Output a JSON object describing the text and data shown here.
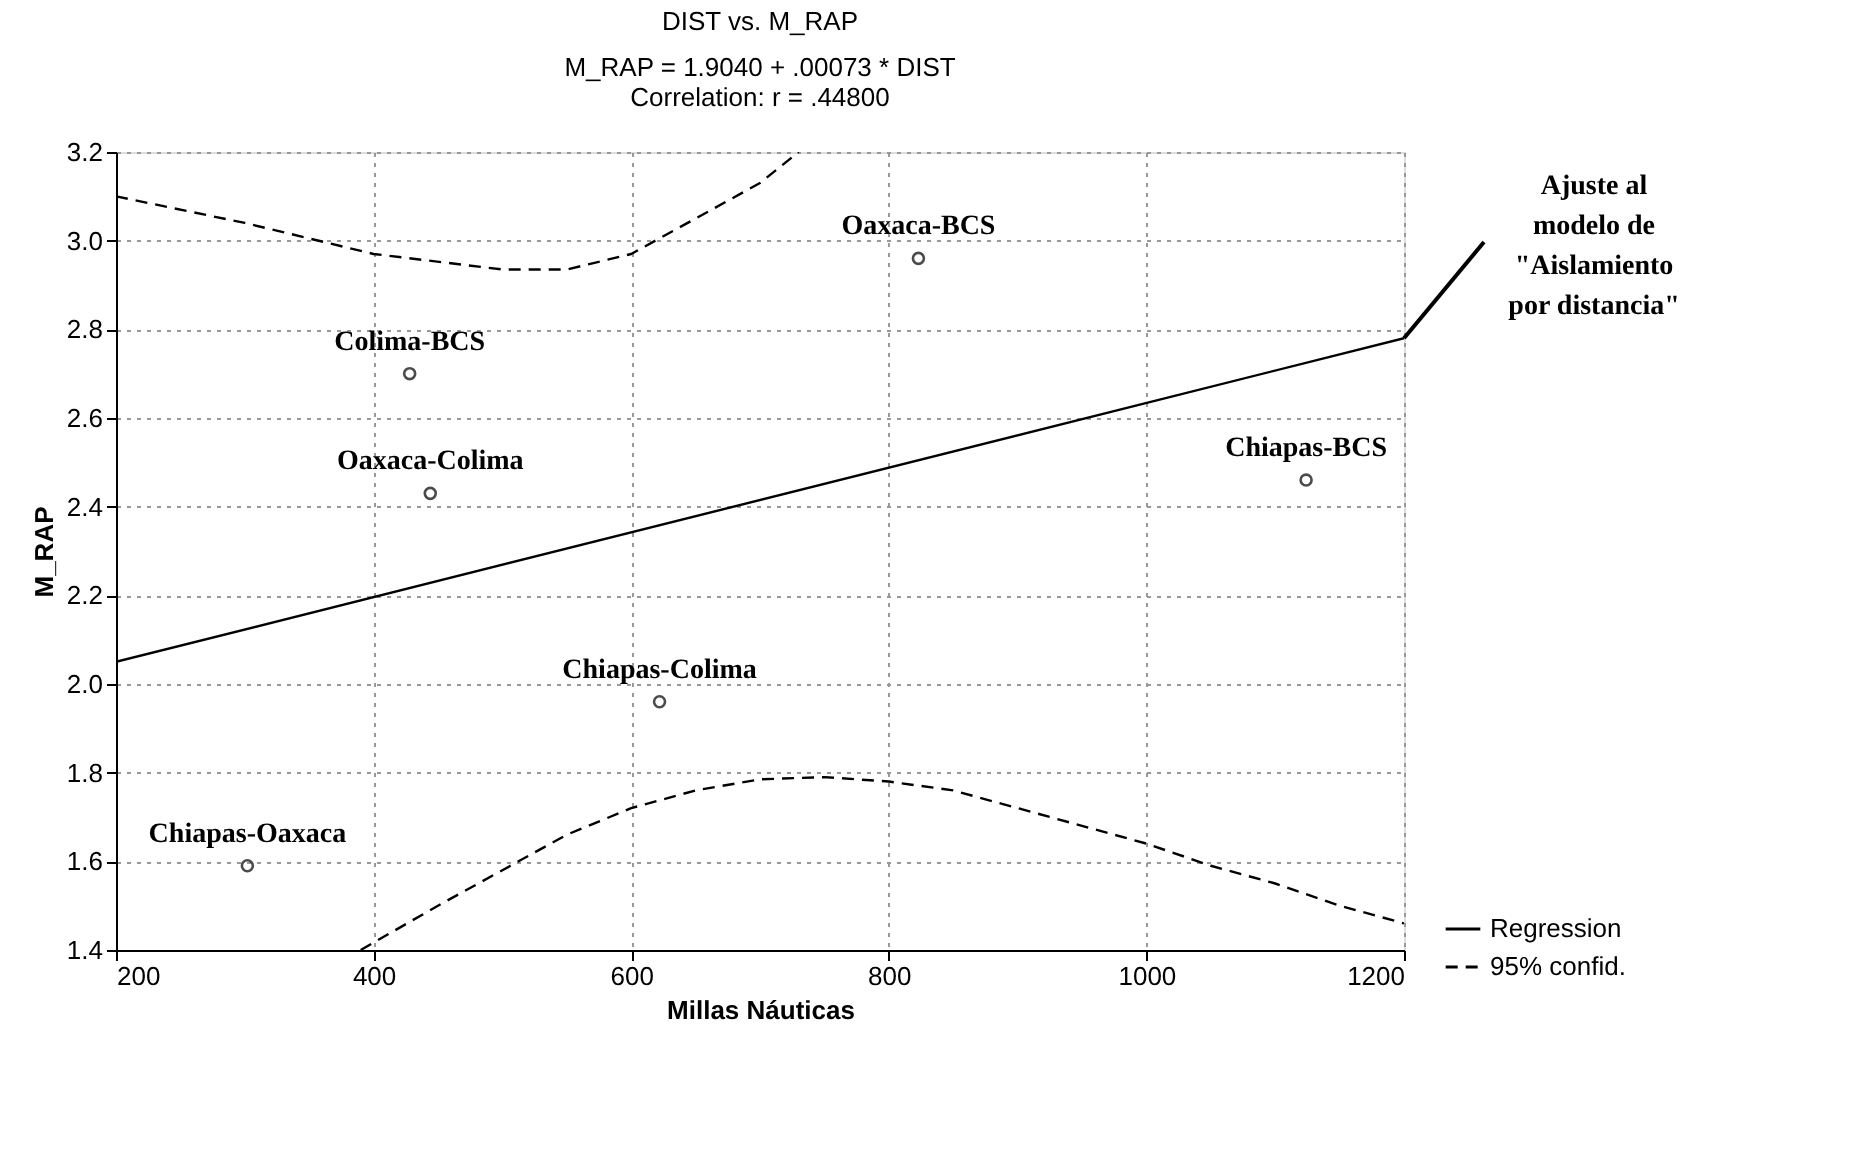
{
  "chart_data": {
    "type": "scatter",
    "title": "DIST vs. M_RAP",
    "subtitle": "M_RAP = 1.9040 + .00073 * DIST\nCorrelation: r = .44800",
    "xlabel": "Millas Náuticas",
    "ylabel": "M_RAP",
    "xlim": [
      200,
      1200
    ],
    "xticks": [
      200,
      400,
      600,
      800,
      1000,
      1200
    ],
    "ylim": [
      1.4,
      3.2
    ],
    "yticks": [
      1.4,
      1.6,
      1.8,
      {
        "value": 2,
        "label": "2.0"
      },
      2.2,
      2.4,
      2.6,
      2.8,
      {
        "value": 3,
        "label": "3.0"
      },
      3.2
    ],
    "grid": true,
    "legend": "bottom right",
    "series": [
      {
        "marker": "circle",
        "color": "#000000",
        "x": [
          823,
          428,
          444,
          1124,
          622,
          302
        ],
        "values": [
          2.96,
          2.7,
          2.43,
          2.46,
          1.96,
          1.59
        ]
      },
      {
        "type": "line",
        "name": "Regression",
        "line_style": "solid",
        "color": "#000000",
        "x": [
          200,
          1200
        ],
        "values": [
          2.05,
          2.78
        ]
      },
      {
        "type": "line",
        "name": "95% confid.",
        "line_style": "dashed",
        "color": "#000000",
        "x": [
          200,
          300,
          400,
          500,
          550,
          600,
          650,
          700,
          730
        ],
        "values": [
          3.1,
          3.04,
          2.97,
          2.935,
          2.935,
          2.97,
          3.05,
          3.13,
          3.2
        ]
      },
      {
        "type": "line",
        "line_style": "dashed",
        "color": "#000000",
        "x": [
          390,
          450,
          500,
          550,
          600,
          650,
          700,
          750,
          800,
          850,
          900,
          950,
          1000,
          1050,
          1100,
          1150,
          1200
        ],
        "values": [
          1.4,
          1.5,
          1.58,
          1.66,
          1.72,
          1.76,
          1.785,
          1.79,
          1.78,
          1.76,
          1.72,
          1.68,
          1.64,
          1.59,
          1.55,
          1.5,
          1.46
        ]
      }
    ],
    "annotations": [
      {
        "text": "Oaxaca-BCS",
        "x": 823,
        "y": 2.96
      },
      {
        "text": "Colima-BCS",
        "x": 428,
        "y": 2.7
      },
      {
        "text": "Oaxaca-Colima",
        "x": 444,
        "y": 2.43
      },
      {
        "text": "Chiapas-BCS",
        "x": 1124,
        "y": 2.46
      },
      {
        "text": "Chiapas-Colima",
        "x": 622,
        "y": 1.96
      },
      {
        "text": "Chiapas-Oaxaca",
        "x": 302,
        "y": 1.59
      },
      {
        "text": "Ajuste al\nmodelo de\n\"Aislamiento\npor distancia\"",
        "x": 1200,
        "y": 2.78
      }
    ]
  }
}
